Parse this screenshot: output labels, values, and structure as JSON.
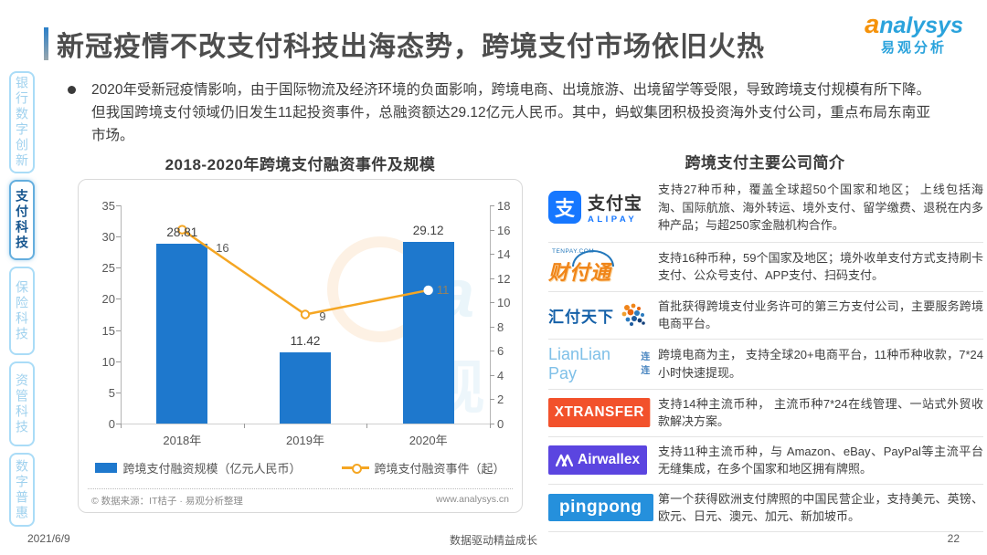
{
  "header": {
    "title": "新冠疫情不改支付科技出海态势，跨境支付市场依旧火热",
    "brand_en": "analysys",
    "brand_cn": "易观分析"
  },
  "sidebar": {
    "items": [
      {
        "label": "银行数字创新",
        "active": false
      },
      {
        "label": "支付科技",
        "active": true
      },
      {
        "label": "保险科技",
        "active": false
      },
      {
        "label": "资管科技",
        "active": false
      },
      {
        "label": "数字普惠",
        "active": false
      }
    ]
  },
  "summary": {
    "bullet": "2020年受新冠疫情影响，由于国际物流及经济环境的负面影响，跨境电商、出境旅游、出境留学等受限，导致跨境支付规模有所下降。但我国跨境支付领域仍旧发生11起投资事件，总融资额达29.12亿元人民币。其中，蚂蚁集团积极投资海外支付公司，重点布局东南亚市场。"
  },
  "chart_data": {
    "type": "bar",
    "title": "2018-2020年跨境支付融资事件及规模",
    "categories": [
      "2018年",
      "2019年",
      "2020年"
    ],
    "series": [
      {
        "name": "跨境支付融资规模（亿元人民币）",
        "kind": "bar",
        "axis": "left",
        "values": [
          28.81,
          11.42,
          29.12
        ],
        "color": "#1e78cd"
      },
      {
        "name": "跨境支付融资事件（起）",
        "kind": "line",
        "axis": "right",
        "values": [
          16,
          9,
          11
        ],
        "color": "#f5a623"
      }
    ],
    "left_axis": {
      "min": 0,
      "max": 35,
      "step": 5
    },
    "right_axis": {
      "min": 0,
      "max": 18,
      "step": 2
    },
    "grid": false,
    "legend_position": "bottom",
    "source_note": "© 数据来源：IT桔子 · 易观分析整理",
    "source_url": "www.analysys.cn"
  },
  "companies": {
    "heading": "跨境支付主要公司简介",
    "rows": [
      {
        "id": "alipay",
        "logo_glyph": "支",
        "logo_cn": "支付宝",
        "logo_en": "ALIPAY",
        "desc": "支持27种币种，覆盖全球超50个国家和地区； 上线包括海淘、国际航旅、海外转运、境外支付、留学缴费、退税在内多种产品；与超250家金融机构合作。"
      },
      {
        "id": "tenpay",
        "logo_top": "TENPAY.COM",
        "logo_cn": "财付通",
        "desc": "支持16种币种，59个国家及地区；境外收单支付方式支持刷卡支付、公众号支付、APP支付、扫码支付。"
      },
      {
        "id": "huifu",
        "logo_cn": "汇付天下",
        "desc": "首批获得跨境支付业务许可的第三方支付公司，主要服务跨境电商平台。"
      },
      {
        "id": "lianlian",
        "logo_en": "LianLian Pay",
        "logo_cn": "连连",
        "desc": "跨境电商为主， 支持全球20+电商平台，11种币种收款，7*24 小时快速提现。"
      },
      {
        "id": "xtransfer",
        "logo_en": "XTRANSFER",
        "desc": "支持14种主流币种， 主流币种7*24在线管理、一站式外贸收款解决方案。"
      },
      {
        "id": "airwallex",
        "logo_en": "Airwallex",
        "desc": "支持11种主流币种，与 Amazon、eBay、PayPal等主流平台无缝集成，在多个国家和地区拥有牌照。"
      },
      {
        "id": "pingpong",
        "logo_en": "pingpong",
        "desc": "第一个获得欧洲支付牌照的中国民营企业，支持美元、英镑、欧元、日元、澳元、加元、新加坡币。"
      }
    ]
  },
  "footer": {
    "date": "2021/6/9",
    "slogan": "数据驱动精益成长",
    "page": "22"
  }
}
